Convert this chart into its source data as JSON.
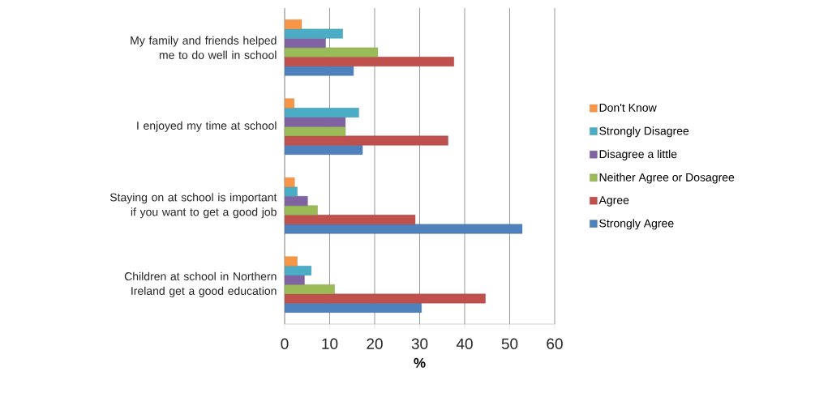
{
  "chart_data": {
    "type": "bar",
    "orientation": "horizontal",
    "categories": [
      "My family and friends helped me to do well in school",
      "I enjoyed my time at school",
      "Staying on at school is important if you want to get a good job",
      "Children at school in Northern Ireland get a good education"
    ],
    "series": [
      {
        "name": "Strongly Agree",
        "color": "#4f81bd",
        "values": [
          15.3,
          17.3,
          52.8,
          30.4
        ]
      },
      {
        "name": "Agree",
        "color": "#c0504d",
        "values": [
          37.6,
          36.3,
          29.0,
          44.6
        ]
      },
      {
        "name": "Neither Agree or Dosagree",
        "color": "#9bbb59",
        "values": [
          20.7,
          13.5,
          7.3,
          11.1
        ]
      },
      {
        "name": "Disagree a little",
        "color": "#8064a2",
        "values": [
          9.1,
          13.5,
          5.1,
          4.4
        ]
      },
      {
        "name": "Strongly Disagree",
        "color": "#4bacc6",
        "values": [
          12.9,
          16.5,
          2.8,
          5.9
        ]
      },
      {
        "name": "Don't Know",
        "color": "#f79646",
        "values": [
          3.8,
          2.1,
          2.2,
          2.8
        ]
      }
    ],
    "xlabel": "%",
    "xlim": [
      0,
      60
    ],
    "xticks": [
      0,
      10,
      20,
      30,
      40,
      50,
      60
    ],
    "grid": "x",
    "legend": "right"
  }
}
